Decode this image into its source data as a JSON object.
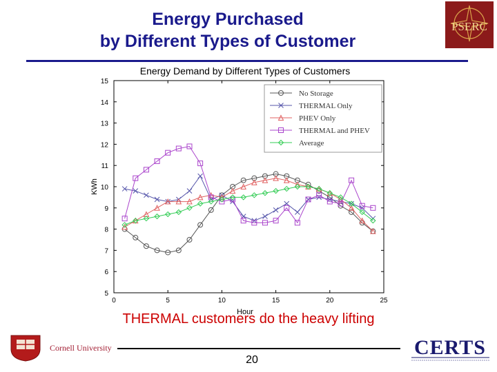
{
  "slide": {
    "title_line1": "Energy Purchased",
    "title_line2": "by Different Types of Customer",
    "caption": "THERMAL customers do the heavy lifting",
    "page_number": "20",
    "cornell_name": "Cornell University",
    "pserc_logo_text": "PSERC",
    "certs_logo_text": "CERTS"
  },
  "colors": {
    "title": "#1a1a8c",
    "caption": "#cc0000"
  },
  "chart_data": {
    "type": "line",
    "title": "Energy Demand by Different Types of Customers",
    "xlabel": "Hour",
    "ylabel": "KWh",
    "xlim": [
      0,
      25
    ],
    "ylim": [
      5,
      15
    ],
    "x_ticks": [
      0,
      5,
      10,
      15,
      20,
      25
    ],
    "y_ticks": [
      5,
      6,
      7,
      8,
      9,
      10,
      11,
      12,
      13,
      14,
      15
    ],
    "grid": false,
    "legend_position": "top-right",
    "x": [
      1,
      2,
      3,
      4,
      5,
      6,
      7,
      8,
      9,
      10,
      11,
      12,
      13,
      14,
      15,
      16,
      17,
      18,
      19,
      20,
      21,
      22,
      23,
      24
    ],
    "series": [
      {
        "name": "No Storage",
        "color": "#555555",
        "marker": "circle",
        "values": [
          8.0,
          7.6,
          7.2,
          7.0,
          6.9,
          7.0,
          7.5,
          8.2,
          8.9,
          9.6,
          10.0,
          10.3,
          10.4,
          10.5,
          10.6,
          10.5,
          10.3,
          10.1,
          9.8,
          9.5,
          9.1,
          8.8,
          8.3,
          7.9
        ]
      },
      {
        "name": "THERMAL Only",
        "color": "#5555aa",
        "marker": "x",
        "values": [
          9.9,
          9.8,
          9.6,
          9.4,
          9.3,
          9.4,
          9.8,
          10.5,
          9.4,
          9.6,
          9.3,
          8.6,
          8.4,
          8.6,
          8.9,
          9.2,
          8.8,
          9.4,
          9.5,
          9.4,
          9.3,
          9.2,
          9.0,
          8.5
        ]
      },
      {
        "name": "PHEV Only",
        "color": "#e06060",
        "marker": "triangle",
        "values": [
          8.1,
          8.4,
          8.7,
          9.0,
          9.3,
          9.3,
          9.3,
          9.5,
          9.6,
          9.5,
          9.8,
          10.0,
          10.2,
          10.3,
          10.4,
          10.3,
          10.1,
          10.0,
          9.9,
          9.7,
          9.4,
          9.0,
          8.4,
          7.9
        ]
      },
      {
        "name": "THERMAL and PHEV",
        "color": "#aa44cc",
        "marker": "square",
        "values": [
          8.5,
          10.4,
          10.8,
          11.2,
          11.6,
          11.8,
          11.9,
          11.1,
          9.5,
          9.3,
          9.4,
          8.4,
          8.3,
          8.3,
          8.4,
          9.0,
          8.3,
          9.4,
          9.6,
          9.3,
          9.2,
          10.3,
          9.1,
          9.0
        ]
      },
      {
        "name": "Average",
        "color": "#33cc55",
        "marker": "diamond",
        "values": [
          8.2,
          8.4,
          8.5,
          8.6,
          8.7,
          8.8,
          9.0,
          9.2,
          9.3,
          9.4,
          9.5,
          9.5,
          9.6,
          9.7,
          9.8,
          9.9,
          10.0,
          10.0,
          9.9,
          9.7,
          9.5,
          9.2,
          8.8,
          8.4
        ]
      }
    ]
  }
}
